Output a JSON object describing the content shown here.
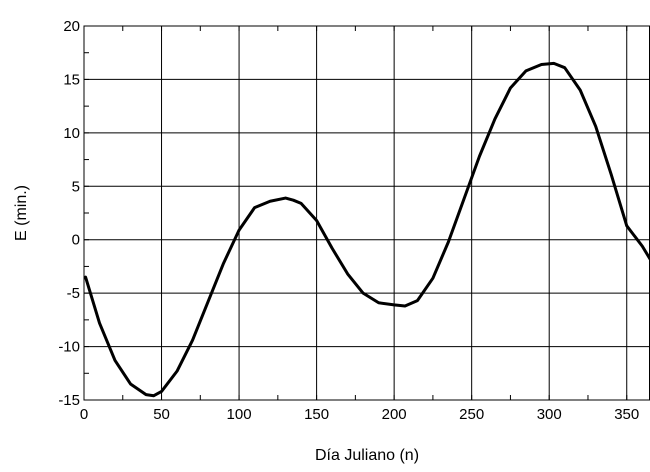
{
  "chart_data": {
    "type": "line",
    "title": "",
    "xlabel": "Día Juliano (n)",
    "ylabel": "E (min.)",
    "xlim": [
      0,
      365
    ],
    "ylim": [
      -15,
      20
    ],
    "grid": true,
    "x_ticks": [
      0,
      50,
      100,
      150,
      200,
      250,
      300,
      350
    ],
    "y_ticks": [
      -15,
      -10,
      -5,
      0,
      5,
      10,
      15,
      20
    ],
    "x_minor_step": 25,
    "y_minor_step": 2.5,
    "line_color": "#000000",
    "series": [
      {
        "values_x": [
          1,
          10,
          20,
          30,
          40,
          45,
          50,
          60,
          70,
          80,
          90,
          100,
          110,
          120,
          130,
          135,
          140,
          150,
          160,
          170,
          180,
          190,
          200,
          207,
          215,
          225,
          235,
          245,
          255,
          265,
          275,
          285,
          295,
          303,
          310,
          320,
          330,
          340,
          350,
          360,
          365
        ],
        "values_y": [
          -3.5,
          -7.8,
          -11.3,
          -13.5,
          -14.5,
          -14.6,
          -14.2,
          -12.3,
          -9.4,
          -5.8,
          -2.2,
          0.9,
          3.0,
          3.6,
          3.9,
          3.7,
          3.4,
          1.8,
          -0.8,
          -3.2,
          -5.0,
          -5.9,
          -6.1,
          -6.2,
          -5.7,
          -3.6,
          -0.2,
          3.8,
          7.8,
          11.3,
          14.2,
          15.8,
          16.4,
          16.5,
          16.1,
          14.0,
          10.6,
          6.1,
          1.3,
          -0.6,
          -1.8
        ]
      }
    ]
  }
}
